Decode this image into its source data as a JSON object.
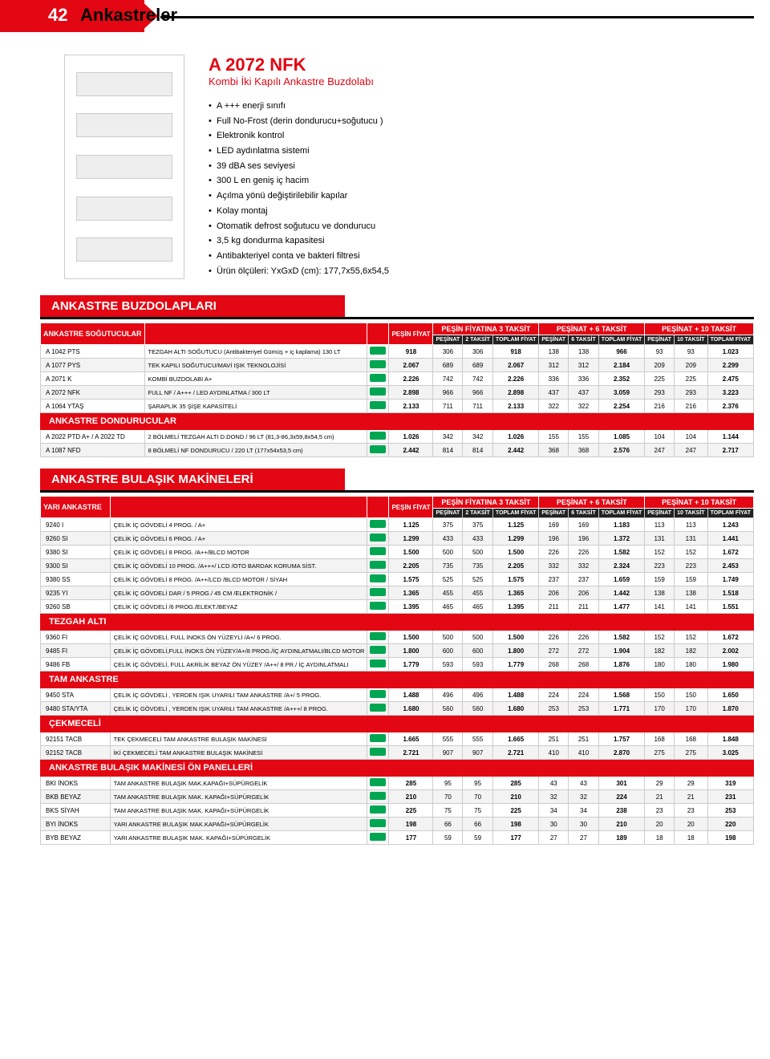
{
  "header": {
    "page": "42",
    "title": "Ankastreler"
  },
  "product": {
    "name": "A 2072 NFK",
    "subtitle": "Kombi İki Kapılı Ankastre Buzdolabı",
    "features": [
      "A +++ enerji sınıfı",
      "Full No-Frost (derin dondurucu+soğutucu )",
      "Elektronik kontrol",
      "LED aydınlatma sistemi",
      "39 dBA ses seviyesi",
      "300 L en geniş iç hacim",
      "Açılma yönü değiştirilebilir kapılar",
      "Kolay montaj",
      "Otomatik defrost soğutucu ve dondurucu",
      "3,5 kg dondurma kapasitesi",
      "Antibakteriyel conta ve bakteri filtresi",
      "Ürün ölçüleri: YxGxD (cm): 177,7x55,6x54,5"
    ]
  },
  "hgrps": [
    "PEŞİN FİYATINA 3 TAKSİT",
    "PEŞİNAT + 6 TAKSİT",
    "PEŞİNAT + 10 TAKSİT"
  ],
  "hsubs": [
    "PEŞİN FİYAT",
    "PEŞİNAT",
    "2 TAKSİT",
    "TOPLAM FİYAT",
    "PEŞİNAT",
    "6 TAKSİT",
    "TOPLAM FİYAT",
    "PEŞİNAT",
    "10 TAKSİT",
    "TOPLAM FİYAT"
  ],
  "section1": {
    "title": "ANKASTRE BUZDOLAPLARI",
    "sub1": "ANKASTRE SOĞUTUCULAR",
    "rows1": [
      {
        "c": "A 1042 PTS",
        "d": "TEZGAH ALTI SOĞUTUCU (Antibakteriyel Gümüş + iç kaplama) 130 LT",
        "v": [
          "918",
          "306",
          "306",
          "918",
          "138",
          "138",
          "966",
          "93",
          "93",
          "1.023"
        ]
      },
      {
        "c": "A 1077 PYS",
        "d": "TEK KAPILI SOĞUTUCU/MAVİ IŞIK TEKNOLOJİSİ",
        "v": [
          "2.067",
          "689",
          "689",
          "2.067",
          "312",
          "312",
          "2.184",
          "209",
          "209",
          "2.299"
        ]
      },
      {
        "c": "A 2071 K",
        "d": "KOMBİ BUZDOLABI A+",
        "v": [
          "2.226",
          "742",
          "742",
          "2.226",
          "336",
          "336",
          "2.352",
          "225",
          "225",
          "2.475"
        ]
      },
      {
        "c": "A 2072 NFK",
        "d": "FULL NF / A+++ / LED AYDINLATMA / 300 LT",
        "v": [
          "2.898",
          "966",
          "966",
          "2.898",
          "437",
          "437",
          "3.059",
          "293",
          "293",
          "3.223"
        ]
      },
      {
        "c": "A 1064 YTAŞ",
        "d": "ŞARAPLIK 35 ŞİŞE KAPASİTELİ",
        "v": [
          "2.133",
          "711",
          "711",
          "2.133",
          "322",
          "322",
          "2.254",
          "216",
          "216",
          "2.376"
        ]
      }
    ],
    "sub2": "ANKASTRE DONDURUCULAR",
    "rows2": [
      {
        "c": "A 2022 PTD A+ / A 2022 TD",
        "d": "2 BÖLMELİ TEZGAH ALTI D.DOND / 96 LT   (81,3-86,3x59,8x54,5 cm)",
        "v": [
          "1.026",
          "342",
          "342",
          "1.026",
          "155",
          "155",
          "1.085",
          "104",
          "104",
          "1.144"
        ]
      },
      {
        "c": "A 1087 NFD",
        "d": "8 BÖLMELİ NF DONDURUCU / 220 LT (177x54x53,5 cm)",
        "v": [
          "2.442",
          "814",
          "814",
          "2.442",
          "368",
          "368",
          "2.576",
          "247",
          "247",
          "2.717"
        ]
      }
    ]
  },
  "section2": {
    "title": "ANKASTRE BULAŞIK MAKİNELERİ",
    "groups": [
      {
        "sub": "YARI ANKASTRE",
        "rows": [
          {
            "c": "9240 I",
            "d": "ÇELİK İÇ GÖVDELİ 4 PROG. / A+",
            "v": [
              "1.125",
              "375",
              "375",
              "1.125",
              "169",
              "169",
              "1.183",
              "113",
              "113",
              "1.243"
            ]
          },
          {
            "c": "9260 SI",
            "d": "ÇELİK İÇ GÖVDELİ 6 PROG. / A+",
            "v": [
              "1.299",
              "433",
              "433",
              "1.299",
              "196",
              "196",
              "1.372",
              "131",
              "131",
              "1.441"
            ]
          },
          {
            "c": "9380 SI",
            "d": "ÇELİK İÇ GÖVDELİ 8 PROG. /A++/BLCD MOTOR",
            "v": [
              "1.500",
              "500",
              "500",
              "1.500",
              "226",
              "226",
              "1.582",
              "152",
              "152",
              "1.672"
            ]
          },
          {
            "c": "9300 SI",
            "d": "ÇELİK İÇ GÖVDELİ 10 PROG. /A+++/ LCD /OTO BARDAK KORUMA SİST.",
            "v": [
              "2.205",
              "735",
              "735",
              "2.205",
              "332",
              "332",
              "2.324",
              "223",
              "223",
              "2.453"
            ]
          },
          {
            "c": "9380 SS",
            "d": "ÇELİK İÇ GÖVDELİ 8 PROG. /A++/LCD /BLCD MOTOR / SİYAH",
            "v": [
              "1.575",
              "525",
              "525",
              "1.575",
              "237",
              "237",
              "1.659",
              "159",
              "159",
              "1.749"
            ]
          },
          {
            "c": "9235 YI",
            "d": "ÇELİK İÇ GÖVDELİ DAR / 5 PROG./ 45 CM /ELEKTRONİK /",
            "v": [
              "1.365",
              "455",
              "455",
              "1.365",
              "206",
              "206",
              "1.442",
              "138",
              "138",
              "1.518"
            ]
          },
          {
            "c": "9260 SB",
            "d": "ÇELİK İÇ GÖVDELİ /6 PROG./ELEKT./BEYAZ",
            "v": [
              "1.395",
              "465",
              "465",
              "1.395",
              "211",
              "211",
              "1.477",
              "141",
              "141",
              "1.551"
            ]
          }
        ]
      },
      {
        "sub": "TEZGAH ALTI",
        "rows": [
          {
            "c": "9360 FI",
            "d": "ÇELİK İÇ GÖVDELİ, FULL İNOKS ÖN YÜZEYLİ /A+/ 6 PROG.",
            "v": [
              "1.500",
              "500",
              "500",
              "1.500",
              "226",
              "226",
              "1.582",
              "152",
              "152",
              "1.672"
            ]
          },
          {
            "c": "9485 FI",
            "d": "ÇELİK İÇ GÖVDELİ,FULL İNOKS ÖN YÜZEY/A+/8 PROG./İÇ AYDINLATMALI/BLCD MOTOR",
            "v": [
              "1.800",
              "600",
              "600",
              "1.800",
              "272",
              "272",
              "1.904",
              "182",
              "182",
              "2.002"
            ]
          },
          {
            "c": "9486 FB",
            "d": "ÇELİK İÇ GÖVDELİ, FULL AKRİLİK BEYAZ ÖN YÜZEY /A++/ 8 PR./ İÇ AYDINLATMALI",
            "v": [
              "1.779",
              "593",
              "593",
              "1.779",
              "268",
              "268",
              "1.876",
              "180",
              "180",
              "1.980"
            ]
          }
        ]
      },
      {
        "sub": "TAM ANKASTRE",
        "rows": [
          {
            "c": "9450 STA",
            "d": "ÇELİK İÇ GÖVDELİ , YERDEN IŞIK UYARILI TAM ANKASTRE /A+/ 5 PROG.",
            "v": [
              "1.488",
              "496",
              "496",
              "1.488",
              "224",
              "224",
              "1.568",
              "150",
              "150",
              "1.650"
            ]
          },
          {
            "c": "9480 STA/YTA",
            "d": "ÇELİK İÇ GÖVDELİ , YERDEN IŞIK UYARILI TAM ANKASTRE /A+++/ 8 PROG.",
            "v": [
              "1.680",
              "560",
              "560",
              "1.680",
              "253",
              "253",
              "1.771",
              "170",
              "170",
              "1.870"
            ]
          }
        ]
      },
      {
        "sub": "ÇEKMECELİ",
        "rows": [
          {
            "c": "92151 TACB",
            "d": "TEK ÇEKMECELİ TAM ANKASTRE BULAŞIK MAKİNESİ",
            "v": [
              "1.665",
              "555",
              "555",
              "1.665",
              "251",
              "251",
              "1.757",
              "168",
              "168",
              "1.848"
            ]
          },
          {
            "c": "92152 TACB",
            "d": "İKİ ÇEKMECELİ TAM ANKASTRE BULAŞIK MAKİNESİ",
            "v": [
              "2.721",
              "907",
              "907",
              "2.721",
              "410",
              "410",
              "2.870",
              "275",
              "275",
              "3.025"
            ]
          }
        ]
      },
      {
        "sub": "ANKASTRE BULAŞIK MAKİNESİ ÖN PANELLERİ",
        "rows": [
          {
            "c": "BKI İNOKS",
            "d": "TAM ANKASTRE BULAŞIK MAK.KAPAĞI+SÜPÜRGELİK",
            "v": [
              "285",
              "95",
              "95",
              "285",
              "43",
              "43",
              "301",
              "29",
              "29",
              "319"
            ]
          },
          {
            "c": "BKB BEYAZ",
            "d": "TAM ANKASTRE BULAŞIK MAK. KAPAĞI+SÜPÜRGELİK",
            "v": [
              "210",
              "70",
              "70",
              "210",
              "32",
              "32",
              "224",
              "21",
              "21",
              "231"
            ]
          },
          {
            "c": "BKS SİYAH",
            "d": "TAM ANKASTRE BULAŞIK MAK. KAPAĞI+SÜPÜRGELİK",
            "v": [
              "225",
              "75",
              "75",
              "225",
              "34",
              "34",
              "238",
              "23",
              "23",
              "253"
            ]
          },
          {
            "c": "BYI İNOKS",
            "d": "YARI ANKASTRE BULAŞIK MAK.KAPAĞI+SÜPÜRGELİK",
            "v": [
              "198",
              "66",
              "66",
              "198",
              "30",
              "30",
              "210",
              "20",
              "20",
              "220"
            ]
          },
          {
            "c": "BYB BEYAZ",
            "d": "YARI ANKASTRE BULAŞIK MAK. KAPAĞI+SÜPÜRGELİK",
            "v": [
              "177",
              "59",
              "59",
              "177",
              "27",
              "27",
              "189",
              "18",
              "18",
              "198"
            ]
          }
        ]
      }
    ]
  }
}
